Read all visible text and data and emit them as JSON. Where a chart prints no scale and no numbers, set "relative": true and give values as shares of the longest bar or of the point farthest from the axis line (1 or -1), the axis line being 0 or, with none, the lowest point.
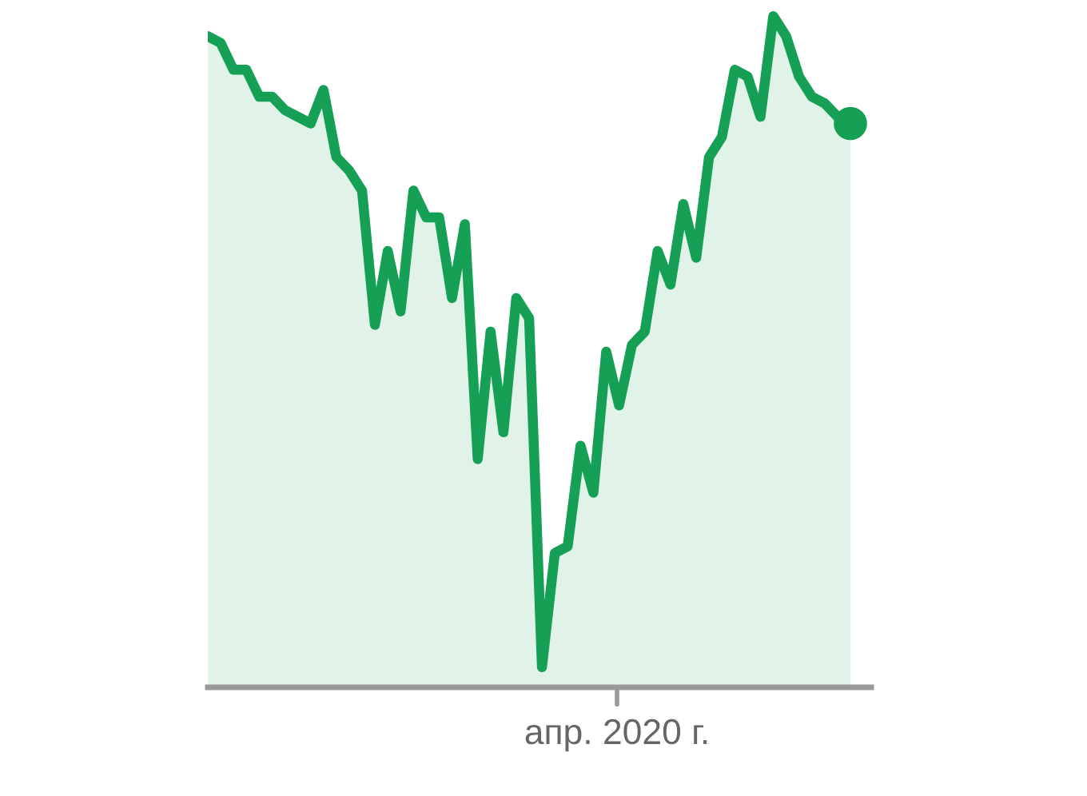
{
  "chart_data": {
    "type": "area",
    "relative": true,
    "categories": [
      null,
      null,
      null,
      null,
      null,
      null,
      null,
      null,
      null,
      null,
      null,
      null,
      null,
      null,
      null,
      null,
      null,
      null,
      null,
      null,
      null,
      null,
      null,
      null,
      null,
      null,
      null,
      null,
      null,
      null,
      null,
      null,
      null,
      null,
      null,
      null,
      null,
      null,
      null,
      null,
      null,
      null,
      null,
      null,
      null,
      null,
      null,
      null,
      null,
      null,
      null
    ],
    "series": [
      {
        "color": "#15a055",
        "values": [
          0.97,
          0.96,
          0.92,
          0.92,
          0.88,
          0.88,
          0.86,
          0.85,
          0.84,
          0.89,
          0.79,
          0.77,
          0.74,
          0.54,
          0.65,
          0.56,
          0.74,
          0.7,
          0.7,
          0.58,
          0.69,
          0.34,
          0.53,
          0.38,
          0.58,
          0.55,
          0.03,
          0.2,
          0.21,
          0.36,
          0.29,
          0.5,
          0.42,
          0.51,
          0.53,
          0.65,
          0.6,
          0.72,
          0.64,
          0.79,
          0.82,
          0.92,
          0.91,
          0.85,
          1.0,
          0.97,
          0.91,
          0.88,
          0.87,
          0.85,
          0.84
        ]
      }
    ],
    "annotations": [
      "апр. 2020 г."
    ]
  }
}
